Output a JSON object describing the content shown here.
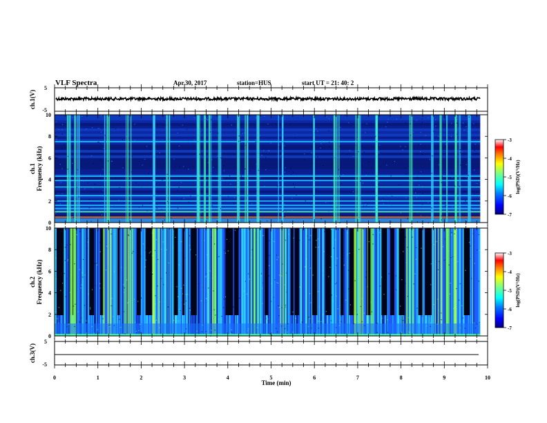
{
  "header": {
    "title": "VLF Spectra",
    "date": "Apr.30, 2017",
    "station": "station=HUS",
    "start": "start UT =   21: 40: 2"
  },
  "panels": {
    "ch1v": {
      "ylabel": "ch.1(V)",
      "yticks": [
        "5",
        "-5"
      ]
    },
    "ch1": {
      "ylabel_top": "ch.1",
      "ylabel": "Frequency (kHz)"
    },
    "ch2": {
      "ylabel_top": "ch.2",
      "ylabel": "Frequency (kHz)"
    },
    "ch3v": {
      "ylabel": "ch.3(V)",
      "yticks": [
        "5",
        "-5"
      ]
    }
  },
  "colorbar": {
    "label": "log(PSD)(V²/Hz)",
    "ticks": [
      "-3",
      "-4",
      "-5",
      "-6",
      "-7"
    ],
    "colors": [
      "#000080",
      "#0000ff",
      "#0080ff",
      "#00ffff",
      "#80ff80",
      "#ffff00",
      "#ff8000",
      "#ff0000",
      "#ffffff"
    ]
  },
  "chart_data": [
    {
      "type": "line",
      "title": "ch.1(V)",
      "ylim": [
        -5,
        5
      ],
      "xlim": [
        0,
        10
      ],
      "description_values": {
        "x": [
          0,
          9.83
        ],
        "y_mean": 0
      }
    },
    {
      "type": "heatmap",
      "title": "ch.1",
      "xlabel": "Time (min)",
      "ylabel": "Frequency (kHz)",
      "xlim": [
        0,
        10
      ],
      "ylim": [
        0,
        10
      ],
      "yticks": [
        0,
        2,
        4,
        6,
        8,
        10
      ],
      "data_end_min": 9.83,
      "zlim": [
        -7,
        -3
      ],
      "background_log_psd": -6.3,
      "bright_bands_khz": [
        0.5,
        1.0,
        1.3,
        1.6,
        2.0,
        2.5,
        3.3,
        3.9,
        4.3,
        7.5
      ],
      "impulsive_times_min": [
        0.3,
        0.5,
        1.2,
        1.7,
        2.3,
        2.6,
        3.3,
        3.5,
        3.6,
        3.8,
        4.2,
        4.4,
        4.7,
        5.2,
        6.0,
        6.5,
        7.0,
        7.4,
        8.2,
        8.7,
        8.9,
        9.1,
        9.3,
        9.6
      ]
    },
    {
      "type": "heatmap",
      "title": "ch.2",
      "xlabel": "Time (min)",
      "ylabel": "Frequency (kHz)",
      "xlim": [
        0,
        10
      ],
      "ylim": [
        0,
        10
      ],
      "yticks": [
        0,
        2,
        4,
        6,
        8,
        10
      ],
      "data_end_min": 9.83,
      "zlim": [
        -7,
        -3
      ],
      "background_log_psd": -5.7,
      "dark_gaps_min": [
        0.05,
        0.35,
        0.8,
        1.05,
        1.45,
        1.9,
        2.1,
        2.75,
        2.95,
        3.15,
        3.95,
        4.15,
        4.85,
        5.45,
        5.55,
        5.95,
        6.25,
        6.6,
        6.8,
        7.2,
        7.55,
        7.75,
        7.95,
        8.4,
        8.55,
        9.45
      ],
      "strong_times_min": [
        0.4,
        1.2,
        1.7,
        2.3,
        3.6,
        4.6,
        5.2,
        7.0,
        7.3,
        8.2,
        8.8,
        9.0,
        9.2
      ]
    },
    {
      "type": "line",
      "title": "ch.3(V)",
      "ylim": [
        -5,
        5
      ],
      "xlim": [
        0,
        10
      ],
      "description_values": {
        "x": [
          0,
          9.83
        ],
        "y_mean": 0
      }
    }
  ],
  "xaxis": {
    "label": "Time (min)",
    "ticks": [
      "0",
      "1",
      "2",
      "3",
      "4",
      "5",
      "6",
      "7",
      "8",
      "9",
      "10"
    ],
    "ylabels_freq": [
      "10",
      "8",
      "6",
      "4",
      "2",
      "0"
    ]
  }
}
